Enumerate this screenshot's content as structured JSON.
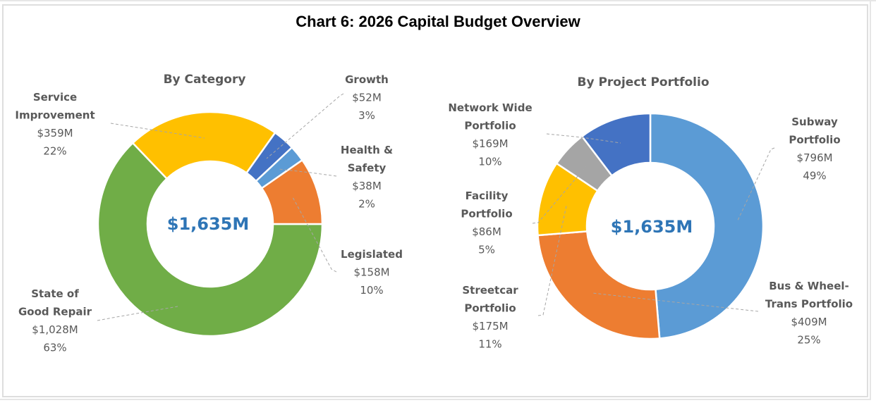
{
  "chart_data": {
    "type": "pie",
    "title": "Chart 6: 2026 Capital Budget Overview",
    "charts": [
      {
        "subtitle": "By Category",
        "center_label": "$1,635M",
        "total": 1635,
        "unit": "$M",
        "start_angle_deg": 90,
        "slices": [
          {
            "name": "State of Good Repair",
            "name_lines": [
              "State of",
              "Good Repair"
            ],
            "value": 1028,
            "value_label": "$1,028M",
            "percent_label": "63%",
            "color": "#70AD47"
          },
          {
            "name": "Service Improvement",
            "name_lines": [
              "Service",
              "Improvement"
            ],
            "value": 359,
            "value_label": "$359M",
            "percent_label": "22%",
            "color": "#FFC000"
          },
          {
            "name": "Growth",
            "name_lines": [
              "Growth"
            ],
            "value": 52,
            "value_label": "$52M",
            "percent_label": "3%",
            "color": "#4472C4"
          },
          {
            "name": "Health & Safety",
            "name_lines": [
              "Health &",
              "Safety"
            ],
            "value": 38,
            "value_label": "$38M",
            "percent_label": "2%",
            "color": "#5B9BD5"
          },
          {
            "name": "Legislated",
            "name_lines": [
              "Legislated"
            ],
            "value": 158,
            "value_label": "$158M",
            "percent_label": "10%",
            "color": "#ED7D31"
          }
        ]
      },
      {
        "subtitle": "By Project Portfolio",
        "center_label": "$1,635M",
        "total": 1635,
        "unit": "$M",
        "start_angle_deg": 0,
        "slices": [
          {
            "name": "Subway Portfolio",
            "name_lines": [
              "Subway",
              "Portfolio"
            ],
            "value": 796,
            "value_label": "$796M",
            "percent_label": "49%",
            "color": "#5B9BD5"
          },
          {
            "name": "Bus & Wheel-Trans Portfolio",
            "name_lines": [
              "Bus & Wheel-",
              "Trans Portfolio"
            ],
            "value": 409,
            "value_label": "$409M",
            "percent_label": "25%",
            "color": "#ED7D31"
          },
          {
            "name": "Streetcar Portfolio",
            "name_lines": [
              "Streetcar",
              "Portfolio"
            ],
            "value": 175,
            "value_label": "$175M",
            "percent_label": "11%",
            "color": "#FFC000"
          },
          {
            "name": "Facility Portfolio",
            "name_lines": [
              "Facility",
              "Portfolio"
            ],
            "value": 86,
            "value_label": "$86M",
            "percent_label": "5%",
            "color": "#A5A5A5"
          },
          {
            "name": "Network Wide Portfolio",
            "name_lines": [
              "Network Wide",
              "Portfolio"
            ],
            "value": 169,
            "value_label": "$169M",
            "percent_label": "10%",
            "color": "#4472C4"
          }
        ]
      }
    ]
  }
}
